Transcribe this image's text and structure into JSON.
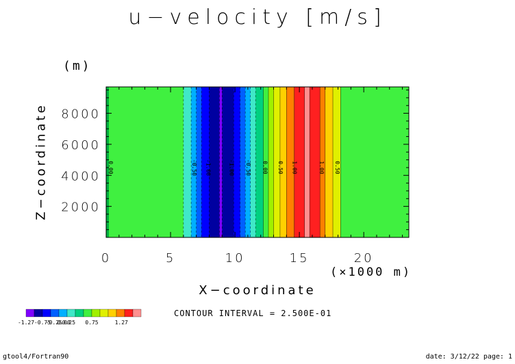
{
  "title": "u−velocity [m/s]",
  "z_unit": "(m)",
  "contour_interval_text": "CONTOUR INTERVAL = 2.500E-01",
  "footer": {
    "left": "gtool4/Fortran90",
    "right": "date: 3/12/22 page: 1"
  },
  "colors": [
    "#7f00ff",
    "#0000a0",
    "#0000ff",
    "#0060ff",
    "#00b0ff",
    "#40e8c8",
    "#00d080",
    "#40f040",
    "#a0f000",
    "#e0f000",
    "#ffd000",
    "#ff8000",
    "#ff2020",
    "#ff9090"
  ],
  "chart_data": {
    "type": "heatmap",
    "title": "u−velocity [m/s]",
    "xlabel": "X−coordinate",
    "ylabel": "Z−coordinate",
    "x_unit": "(×1000 m)",
    "xlim": [
      0,
      23.5
    ],
    "ylim": [
      0,
      9700
    ],
    "xticks": [
      "0",
      "5",
      "10",
      "15",
      "20"
    ],
    "yticks": [
      "2000",
      "4000",
      "6000",
      "8000"
    ],
    "grid": false,
    "bands": [
      {
        "x0": 0.0,
        "x1": 6.0,
        "level": 7
      },
      {
        "x0": 6.0,
        "x1": 6.6,
        "level": 5
      },
      {
        "x0": 6.6,
        "x1": 7.0,
        "level": 4
      },
      {
        "x0": 7.0,
        "x1": 7.4,
        "level": 3
      },
      {
        "x0": 7.4,
        "x1": 8.0,
        "level": 2
      },
      {
        "x0": 8.0,
        "x1": 8.8,
        "level": 1
      },
      {
        "x0": 8.8,
        "x1": 9.0,
        "level": 0
      },
      {
        "x0": 9.0,
        "x1": 9.9,
        "level": 1
      },
      {
        "x0": 9.9,
        "x1": 10.4,
        "level": 2
      },
      {
        "x0": 10.4,
        "x1": 10.8,
        "level": 3
      },
      {
        "x0": 10.8,
        "x1": 11.2,
        "level": 4
      },
      {
        "x0": 11.2,
        "x1": 11.6,
        "level": 5
      },
      {
        "x0": 11.6,
        "x1": 12.2,
        "level": 6
      },
      {
        "x0": 12.2,
        "x1": 12.6,
        "level": 7
      },
      {
        "x0": 12.6,
        "x1": 13.0,
        "level": 8
      },
      {
        "x0": 13.0,
        "x1": 13.5,
        "level": 9
      },
      {
        "x0": 13.5,
        "x1": 14.0,
        "level": 10
      },
      {
        "x0": 14.0,
        "x1": 14.6,
        "level": 11
      },
      {
        "x0": 14.6,
        "x1": 15.4,
        "level": 12
      },
      {
        "x0": 15.4,
        "x1": 15.8,
        "level": 13
      },
      {
        "x0": 15.8,
        "x1": 16.6,
        "level": 12
      },
      {
        "x0": 16.6,
        "x1": 17.0,
        "level": 11
      },
      {
        "x0": 17.0,
        "x1": 17.6,
        "level": 10
      },
      {
        "x0": 17.6,
        "x1": 18.2,
        "level": 9
      },
      {
        "x0": 18.2,
        "x1": 23.5,
        "level": 7
      }
    ],
    "contour_labels": [
      {
        "x": 0.2,
        "text": "0.00"
      },
      {
        "x": 6.7,
        "text": "-0.50"
      },
      {
        "x": 7.8,
        "text": "-1.00"
      },
      {
        "x": 9.6,
        "text": "-1.00"
      },
      {
        "x": 10.9,
        "text": "-0.50"
      },
      {
        "x": 12.2,
        "text": "0.00"
      },
      {
        "x": 13.4,
        "text": "0.50"
      },
      {
        "x": 14.5,
        "text": "1.00"
      },
      {
        "x": 16.6,
        "text": "1.00"
      },
      {
        "x": 17.8,
        "text": "0.50"
      }
    ],
    "colorbar": {
      "ticks": [
        {
          "level": 0,
          "text": "-1.27"
        },
        {
          "level": 2,
          "text": "-0.75"
        },
        {
          "level": 3.4,
          "text": "-0.25"
        },
        {
          "level": 4.6,
          "text": "0.00"
        },
        {
          "level": 5.2,
          "text": "0.25"
        },
        {
          "level": 8,
          "text": "0.75"
        },
        {
          "level": 11.6,
          "text": "1.27"
        }
      ]
    }
  }
}
